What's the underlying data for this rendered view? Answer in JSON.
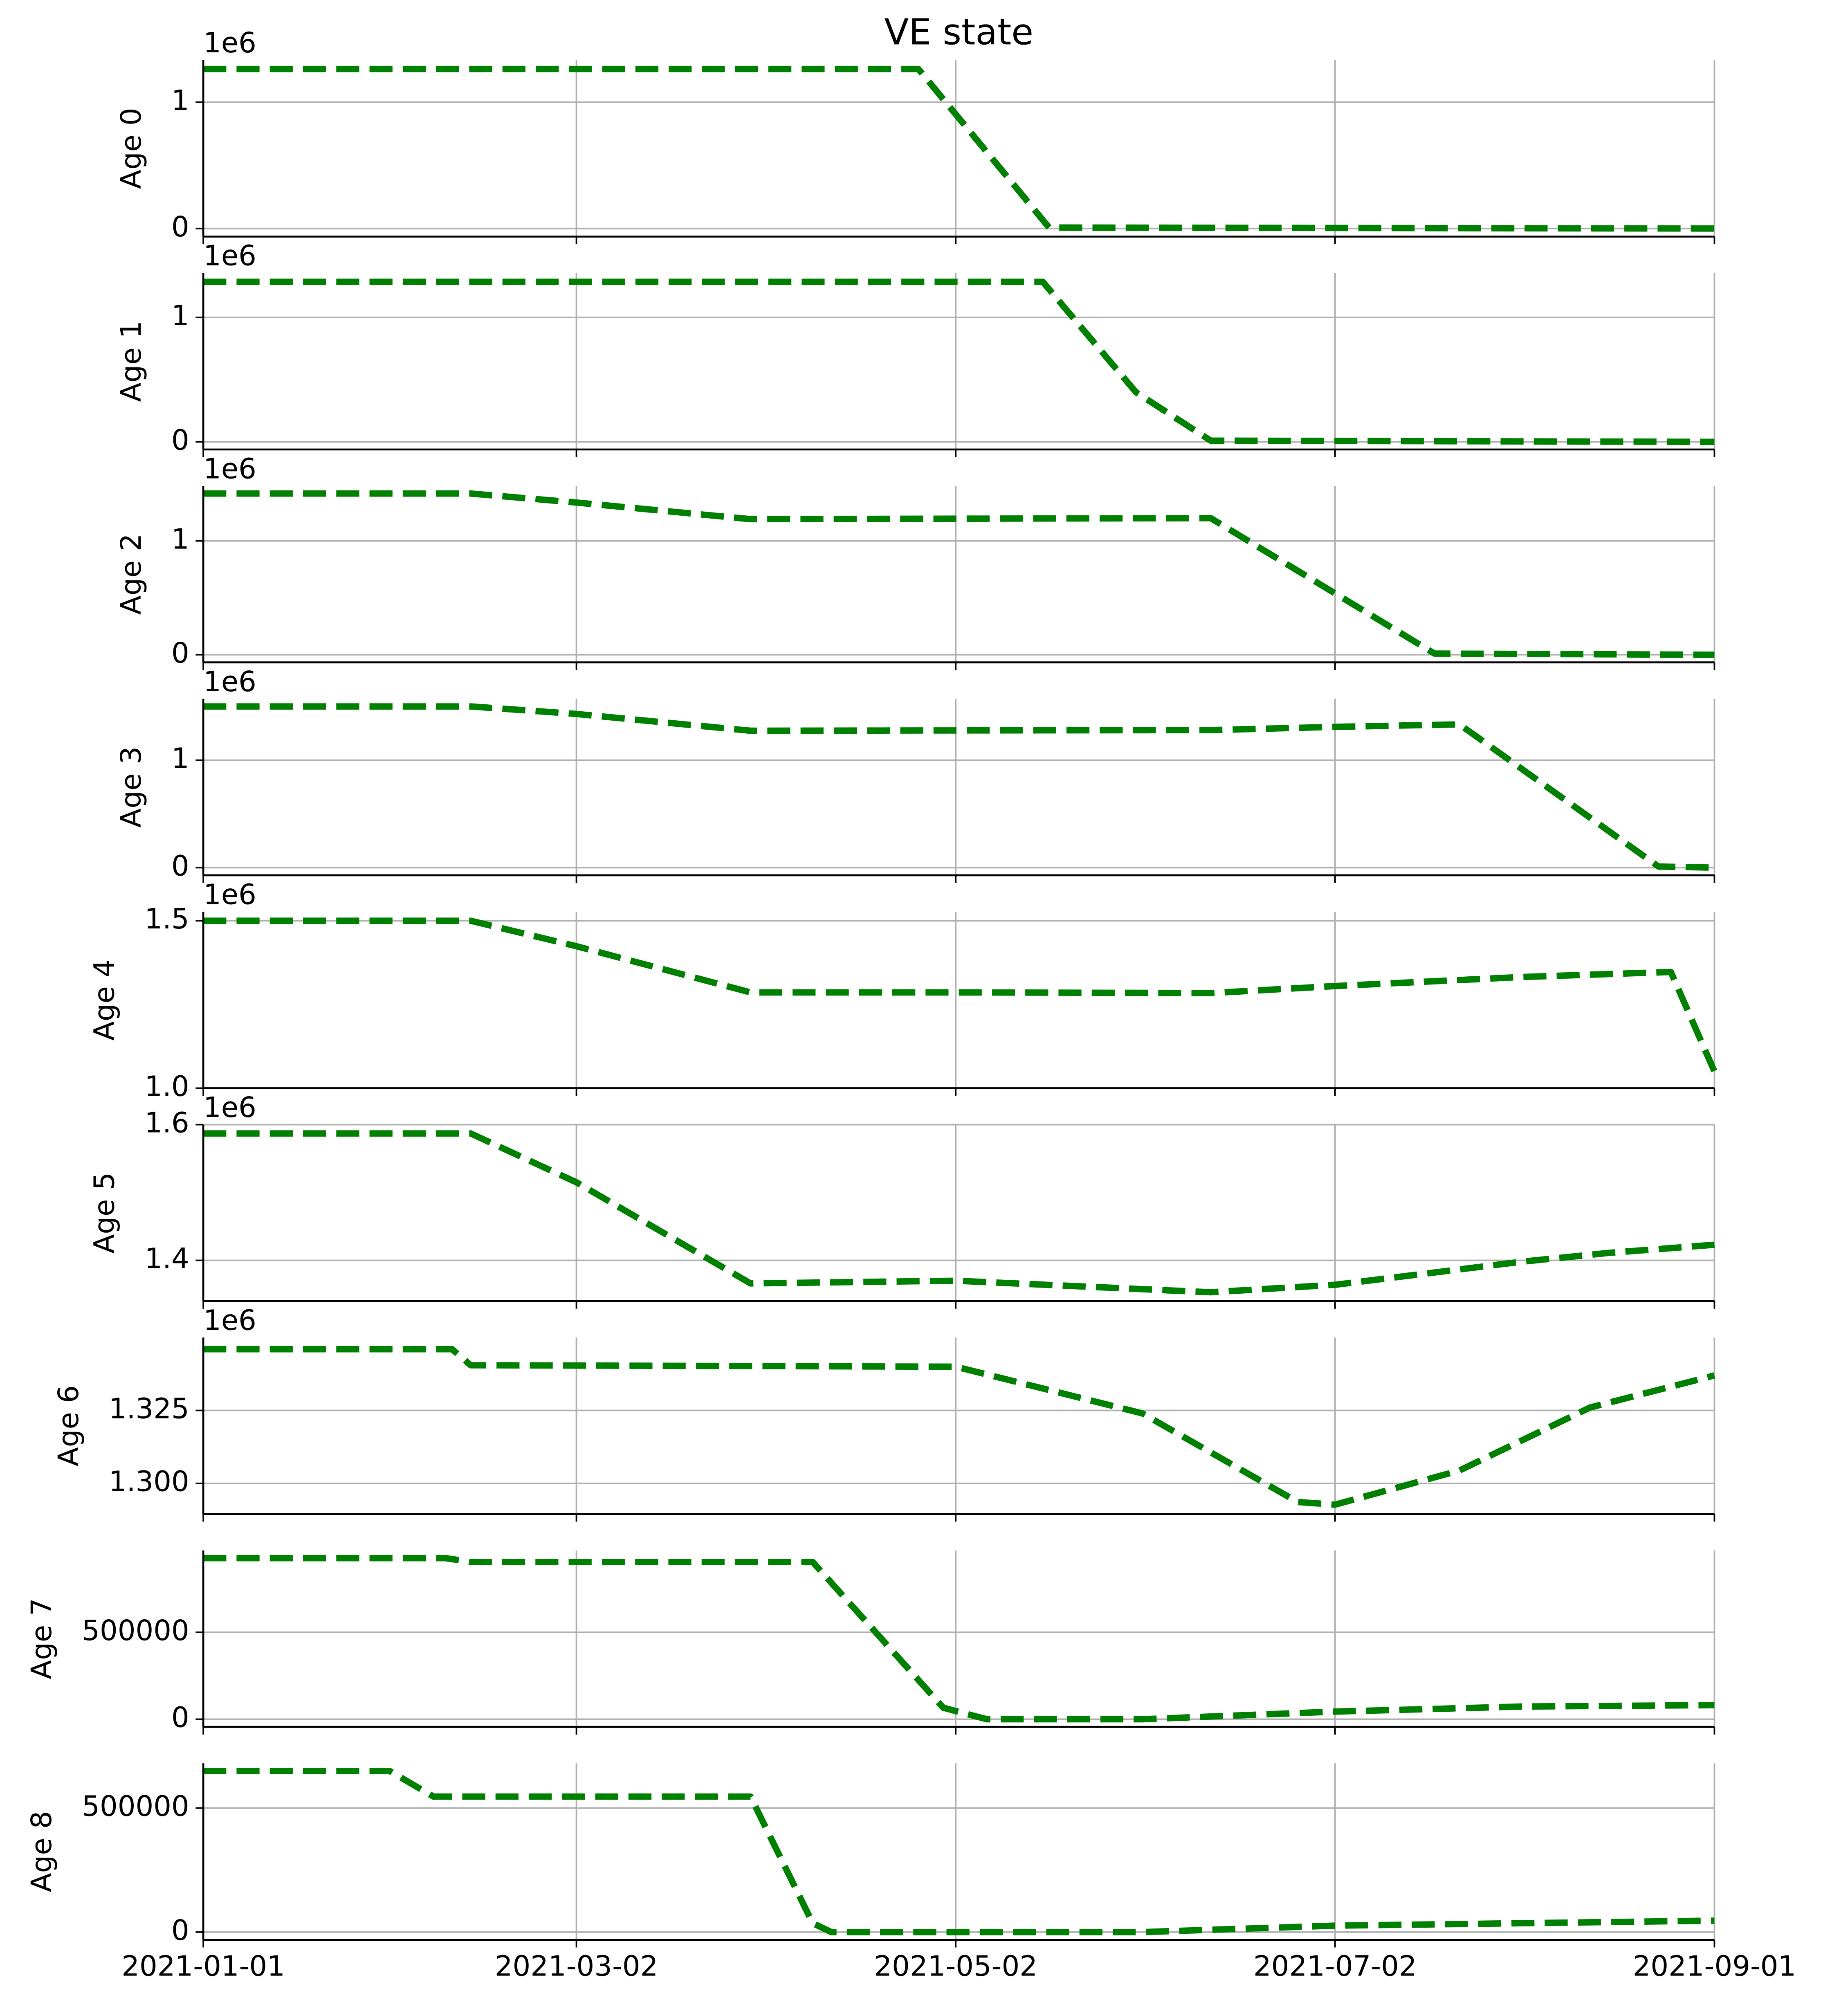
{
  "title": "VE state",
  "chart_data": [
    {
      "type": "line",
      "ylabel": "Age 0",
      "offset_text": "1e6",
      "color": "#008000",
      "linestyle": "dashed",
      "grid": true,
      "x": [
        "2021-01-01",
        "2021-04-26",
        "2021-05-17",
        "2021-09-01"
      ],
      "values": [
        1263000,
        1263000,
        8000,
        0
      ],
      "xlim": [
        "2021-01-01",
        "2021-09-01"
      ],
      "xticks": [
        "2021-01-01",
        "2021-03-02",
        "2021-05-02",
        "2021-07-02",
        "2021-09-01"
      ],
      "ylim": [
        -63500,
        1333500
      ],
      "yticks": [
        0,
        {
          "value": 1000000,
          "label": "1"
        }
      ]
    },
    {
      "type": "line",
      "ylabel": "Age 1",
      "offset_text": "1e6",
      "color": "#008000",
      "linestyle": "dashed",
      "grid": true,
      "x": [
        "2021-01-01",
        "2021-05-16",
        "2021-05-31",
        "2021-06-12",
        "2021-09-01"
      ],
      "values": [
        1286000,
        1286000,
        398000,
        10000,
        0
      ],
      "xlim": [
        "2021-01-01",
        "2021-09-01"
      ],
      "xticks": [
        "2021-01-01",
        "2021-03-02",
        "2021-05-02",
        "2021-07-02",
        "2021-09-01"
      ],
      "ylim": [
        -61000,
        1357000
      ],
      "yticks": [
        0,
        {
          "value": 1000000,
          "label": "1"
        }
      ]
    },
    {
      "type": "line",
      "ylabel": "Age 2",
      "offset_text": "1e6",
      "color": "#008000",
      "linestyle": "dashed",
      "grid": true,
      "x": [
        "2021-01-01",
        "2021-02-13",
        "2021-03-02",
        "2021-03-30",
        "2021-06-12",
        "2021-07-18",
        "2021-09-01"
      ],
      "values": [
        1416000,
        1416000,
        1337000,
        1191000,
        1200000,
        10000,
        0
      ],
      "xlim": [
        "2021-01-01",
        "2021-09-01"
      ],
      "xticks": [
        "2021-01-01",
        "2021-03-02",
        "2021-05-02",
        "2021-07-02",
        "2021-09-01"
      ],
      "ylim": [
        -67000,
        1483000
      ],
      "yticks": [
        0,
        {
          "value": 1000000,
          "label": "1"
        }
      ]
    },
    {
      "type": "line",
      "ylabel": "Age 3",
      "offset_text": "1e6",
      "color": "#008000",
      "linestyle": "dashed",
      "grid": true,
      "x": [
        "2021-01-01",
        "2021-02-13",
        "2021-03-02",
        "2021-03-30",
        "2021-06-12",
        "2021-07-02",
        "2021-07-22",
        "2021-08-23",
        "2021-09-01"
      ],
      "values": [
        1500000,
        1500000,
        1430000,
        1274000,
        1280000,
        1310000,
        1333000,
        10000,
        0
      ],
      "xlim": [
        "2021-01-01",
        "2021-09-01"
      ],
      "xticks": [
        "2021-01-01",
        "2021-03-02",
        "2021-05-02",
        "2021-07-02",
        "2021-09-01"
      ],
      "ylim": [
        -71000,
        1571000
      ],
      "yticks": [
        0,
        {
          "value": 1000000,
          "label": "1"
        }
      ]
    },
    {
      "type": "line",
      "ylabel": "Age 4",
      "offset_text": "1e6",
      "color": "#008000",
      "linestyle": "dashed",
      "grid": true,
      "x": [
        "2021-01-01",
        "2021-02-13",
        "2021-03-02",
        "2021-03-30",
        "2021-05-02",
        "2021-06-12",
        "2021-07-02",
        "2021-08-01",
        "2021-08-25",
        "2021-09-01"
      ],
      "values": [
        1500000,
        1500000,
        1424000,
        1286000,
        1286000,
        1284000,
        1305000,
        1332000,
        1347000,
        1050000
      ],
      "xlim": [
        "2021-01-01",
        "2021-09-01"
      ],
      "xticks": [
        "2021-01-01",
        "2021-03-02",
        "2021-05-02",
        "2021-07-02",
        "2021-09-01"
      ],
      "ylim": [
        1000000,
        1527000
      ],
      "yticks": [
        {
          "value": 1000000,
          "label": "1.0"
        },
        {
          "value": 1500000,
          "label": "1.5"
        }
      ]
    },
    {
      "type": "line",
      "ylabel": "Age 5",
      "offset_text": "1e6",
      "color": "#008000",
      "linestyle": "dashed",
      "grid": true,
      "x": [
        "2021-01-01",
        "2021-02-13",
        "2021-03-02",
        "2021-03-30",
        "2021-05-02",
        "2021-06-12",
        "2021-07-02",
        "2021-08-01",
        "2021-08-15",
        "2021-09-01"
      ],
      "values": [
        1587000,
        1587000,
        1515000,
        1366000,
        1370000,
        1353000,
        1364000,
        1398000,
        1411000,
        1423000
      ],
      "xlim": [
        "2021-01-01",
        "2021-09-01"
      ],
      "xticks": [
        "2021-01-01",
        "2021-03-02",
        "2021-05-02",
        "2021-07-02",
        "2021-09-01"
      ],
      "ylim": [
        1340000,
        1600000
      ],
      "yticks": [
        {
          "value": 1400000,
          "label": "1.4"
        },
        {
          "value": 1600000,
          "label": "1.6"
        }
      ]
    },
    {
      "type": "line",
      "ylabel": "Age 6",
      "offset_text": "1e6",
      "color": "#008000",
      "linestyle": "dashed",
      "grid": true,
      "x": [
        "2021-01-01",
        "2021-02-10",
        "2021-02-13",
        "2021-05-02",
        "2021-06-01",
        "2021-06-26",
        "2021-07-02",
        "2021-07-22",
        "2021-08-12",
        "2021-09-01"
      ],
      "values": [
        1346000,
        1346000,
        1340500,
        1340000,
        1324000,
        1293600,
        1292700,
        1304400,
        1326000,
        1337000
      ],
      "xlim": [
        "2021-01-01",
        "2021-09-01"
      ],
      "xticks": [
        "2021-01-01",
        "2021-03-02",
        "2021-05-02",
        "2021-07-02",
        "2021-09-01"
      ],
      "ylim": [
        1289500,
        1350000
      ],
      "yticks": [
        {
          "value": 1300000,
          "label": "1.300"
        },
        {
          "value": 1325000,
          "label": "1.325"
        }
      ]
    },
    {
      "type": "line",
      "ylabel": "Age 7",
      "color": "#008000",
      "linestyle": "dashed",
      "grid": true,
      "x": [
        "2021-01-01",
        "2021-02-09",
        "2021-02-13",
        "2021-04-09",
        "2021-04-30",
        "2021-05-07",
        "2021-06-01",
        "2021-07-02",
        "2021-08-01",
        "2021-09-01"
      ],
      "values": [
        926000,
        926000,
        904000,
        904000,
        66000,
        0,
        0,
        44000,
        73000,
        81000
      ],
      "xlim": [
        "2021-01-01",
        "2021-09-01"
      ],
      "xticks": [
        "2021-01-01",
        "2021-03-02",
        "2021-05-02",
        "2021-07-02",
        "2021-09-01"
      ],
      "ylim": [
        -44000,
        970500
      ],
      "yticks": [
        0,
        500000
      ]
    },
    {
      "type": "line",
      "ylabel": "Age 8",
      "color": "#008000",
      "linestyle": "dashed",
      "grid": true,
      "x": [
        "2021-01-01",
        "2021-01-31",
        "2021-02-07",
        "2021-03-30",
        "2021-04-09",
        "2021-04-12",
        "2021-06-01",
        "2021-07-02",
        "2021-09-01"
      ],
      "values": [
        649000,
        649000,
        546000,
        546000,
        36000,
        0,
        0,
        26000,
        46000
      ],
      "xlim": [
        "2021-01-01",
        "2021-09-01"
      ],
      "xticks": [
        "2021-01-01",
        "2021-03-02",
        "2021-05-02",
        "2021-07-02",
        "2021-09-01"
      ],
      "ylim": [
        -31000,
        680000
      ],
      "yticks": [
        0,
        500000
      ]
    }
  ]
}
